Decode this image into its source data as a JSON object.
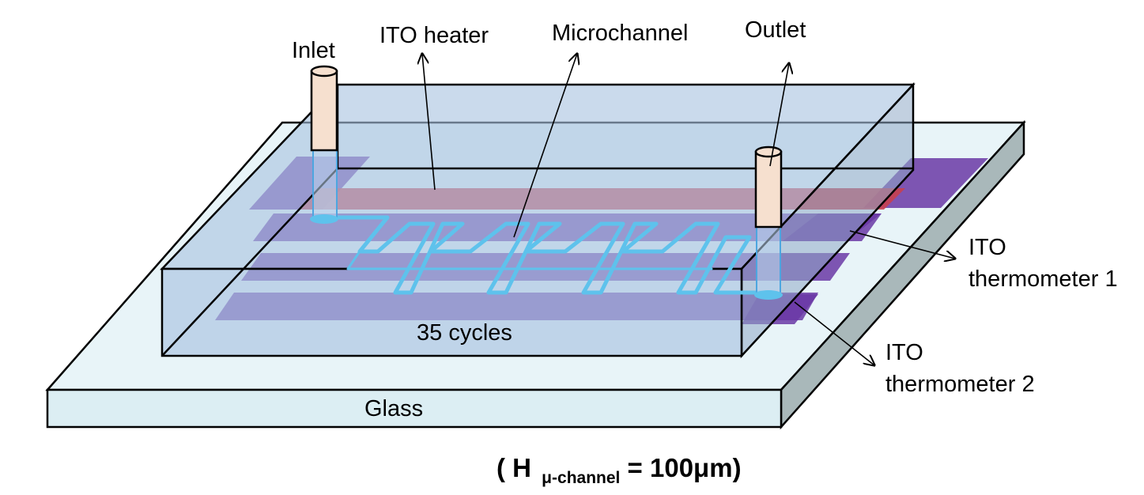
{
  "labels": {
    "inlet": "Inlet",
    "ito_heater": "ITO heater",
    "microchannel": "Microchannel",
    "outlet": "Outlet",
    "thermometer1_line1": "ITO",
    "thermometer1_line2": "thermometer 1",
    "thermometer2_line1": "ITO",
    "thermometer2_line2": "thermometer 2",
    "cycles": "35 cycles",
    "glass": "Glass"
  },
  "formula": {
    "open": "( H",
    "subscript": "μ-channel",
    "rest": " = 100μm)"
  },
  "colors": {
    "glass_top": "#e8f4f8",
    "glass_front": "#dceef3",
    "glass_side": "#a9b8ba",
    "pdms": "#a9c3e1",
    "heater": "#c8404f",
    "thermometer": "#6a38a6",
    "channel": "#5ec2ec",
    "tube": "#f6e0cf"
  }
}
